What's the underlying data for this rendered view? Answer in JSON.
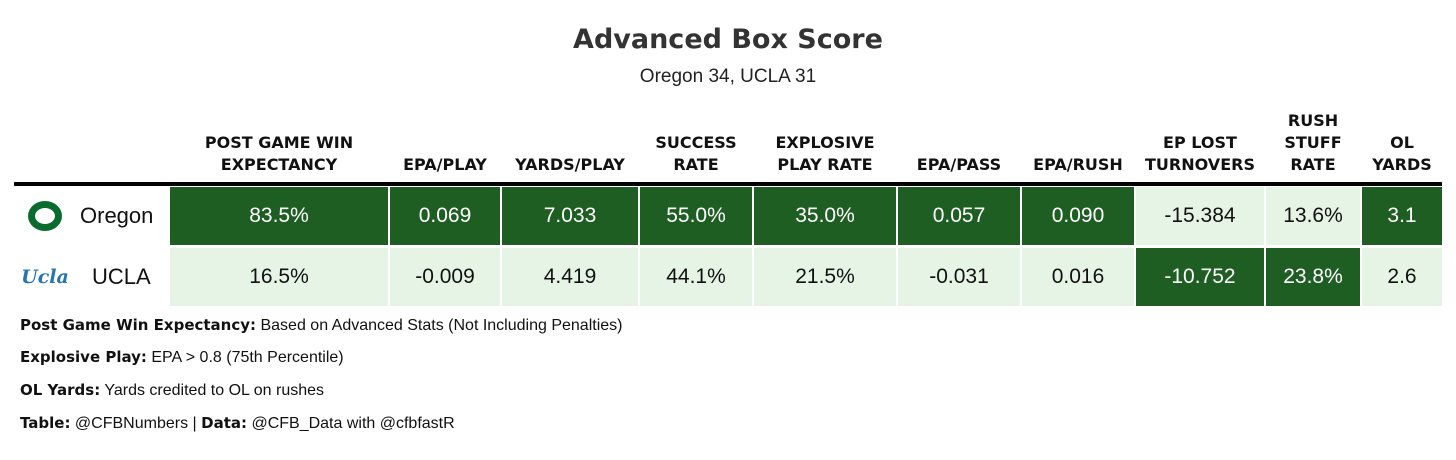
{
  "chart_data": {
    "type": "table",
    "title": "Advanced Box Score",
    "subtitle": "Oregon 34, UCLA 31",
    "columns": [
      {
        "key": "win_exp",
        "label": "Post Game Win\nExpectancy"
      },
      {
        "key": "epa_play",
        "label": "EPA/Play"
      },
      {
        "key": "yards_play",
        "label": "Yards/Play"
      },
      {
        "key": "success_rate",
        "label": "Success\nRate"
      },
      {
        "key": "explosive_rate",
        "label": "Explosive\nPlay Rate"
      },
      {
        "key": "epa_pass",
        "label": "EPA/Pass"
      },
      {
        "key": "epa_rush",
        "label": "EPA/Rush"
      },
      {
        "key": "ep_lost_turnovers",
        "label": "EP Lost\nTurnovers"
      },
      {
        "key": "rush_stuff_rate",
        "label": "Rush\nStuff\nRate"
      },
      {
        "key": "ol_yards",
        "label": "OL\nYards"
      }
    ],
    "rows": [
      {
        "team": "Oregon",
        "logo": "oregon-o-logo",
        "values": [
          "83.5%",
          "0.069",
          "7.033",
          "55.0%",
          "35.0%",
          "0.057",
          "0.090",
          "-15.384",
          "13.6%",
          "3.1"
        ],
        "shades": [
          "dark",
          "dark",
          "dark",
          "dark",
          "dark",
          "dark",
          "dark",
          "light",
          "light",
          "dark"
        ]
      },
      {
        "team": "UCLA",
        "logo": "ucla-script-logo",
        "values": [
          "16.5%",
          "-0.009",
          "4.419",
          "44.1%",
          "21.5%",
          "-0.031",
          "0.016",
          "-10.752",
          "23.8%",
          "2.6"
        ],
        "shades": [
          "light",
          "light",
          "light",
          "light",
          "light",
          "light",
          "light",
          "dark",
          "dark",
          "light"
        ]
      }
    ],
    "colors": {
      "dark": "#1e5e22",
      "light": "#e6f4e6",
      "dark_text": "#ffffff",
      "light_text": "#111111"
    }
  },
  "logos": {
    "oregon_text": "O",
    "ucla_text": "Ucla"
  },
  "footnotes": [
    {
      "label": "Post Game Win Expectancy:",
      "text": " Based on Advanced Stats (Not Including Penalties)"
    },
    {
      "label": "Explosive Play:",
      "text": " EPA > 0.8 (75th Percentile)"
    },
    {
      "label": "OL Yards:",
      "text": " Yards credited to OL on rushes"
    }
  ],
  "credits": {
    "table_label": "Table:",
    "table_value": " @CFBNumbers | ",
    "data_label": "Data:",
    "data_value": " @CFB_Data with @cfbfastR"
  }
}
